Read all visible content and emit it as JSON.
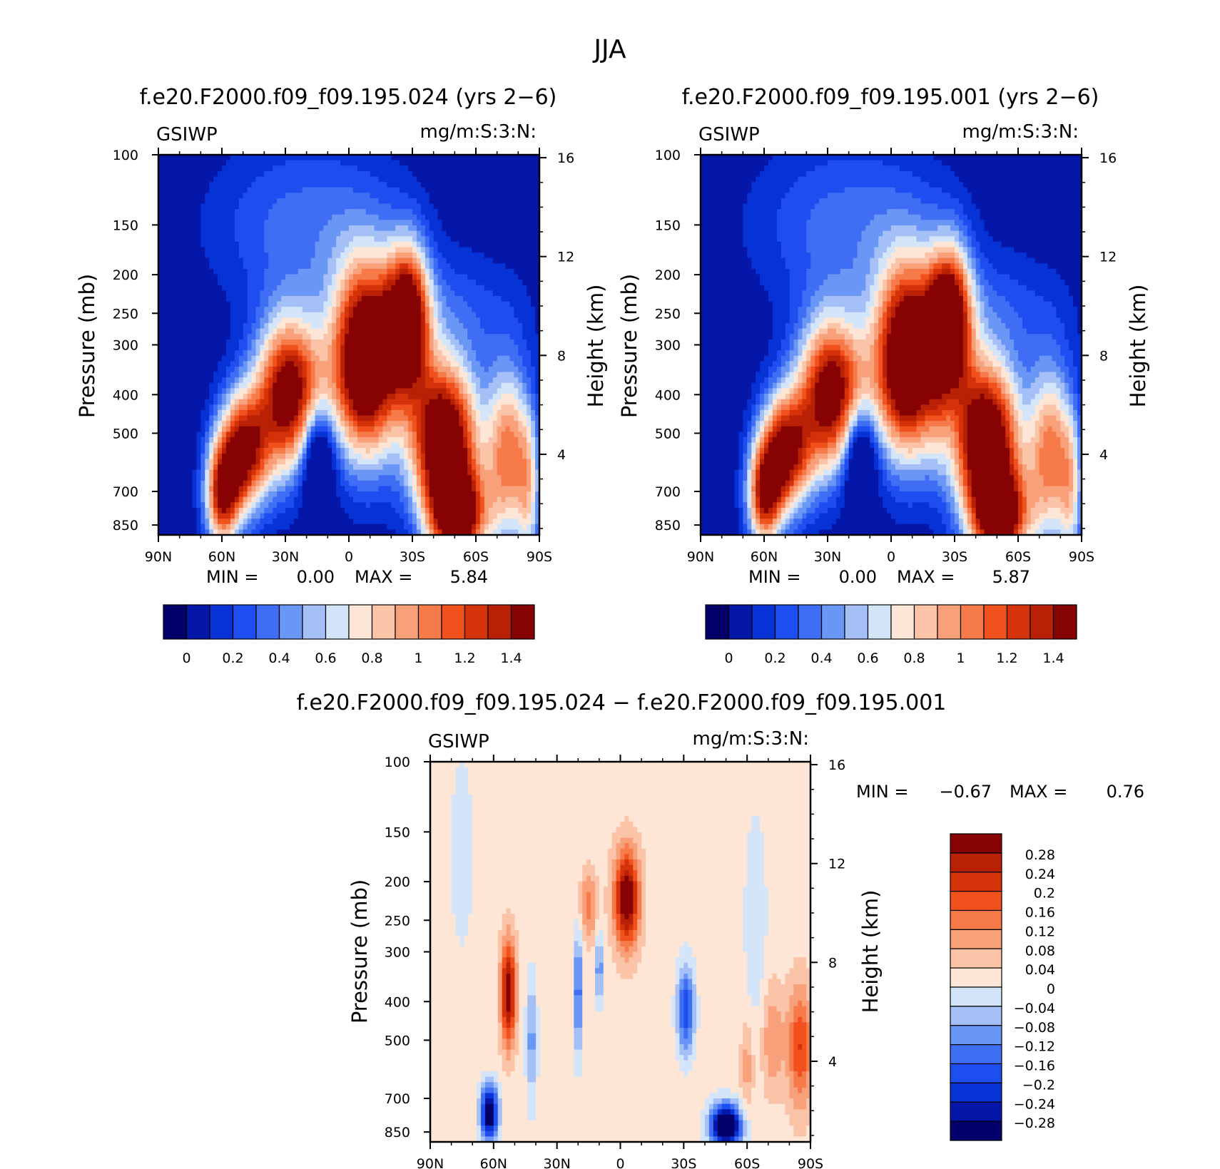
{
  "figure": {
    "title": "JJA",
    "panel_a_title": "f.e20.F2000.f09_f09.195.024 (yrs 2−6)",
    "panel_b_title": "f.e20.F2000.f09_f09.195.001 (yrs 2−6)",
    "panel_c_title": "f.e20.F2000.f09_f09.195.024 − f.e20.F2000.f09_f09.195.001",
    "variable": "GSIWP",
    "units": "mg/m:S:3:N:"
  },
  "chart_data": [
    {
      "type": "contour",
      "variable": "GSIWP",
      "units": "mg/m:S:3:N:",
      "title": "f.e20.F2000.f09_f09.195.024 (yrs 2−6)",
      "ylabel": "Pressure (mb)",
      "ylabel_right": "Height (km)",
      "x_ticks": [
        "90N",
        "60N",
        "30N",
        "0",
        "30S",
        "60S",
        "90S"
      ],
      "x_range": [
        90,
        -90
      ],
      "y_ticks": [
        100,
        150,
        200,
        250,
        300,
        400,
        500,
        700,
        850
      ],
      "y_range_mb": [
        100,
        900
      ],
      "y_scale": "log",
      "y_right_ticks": [
        16,
        12,
        8,
        4
      ],
      "min_label": "MIN =",
      "min_value": "0.00",
      "max_label": "MAX =",
      "max_value": "5.84",
      "colorbar_levels": [
        0,
        0.1,
        0.2,
        0.3,
        0.4,
        0.5,
        0.6,
        0.7,
        0.8,
        0.9,
        1,
        1.1,
        1.2,
        1.3,
        1.4
      ],
      "colorbar_labels": [
        "0",
        "0.2",
        "0.4",
        "0.6",
        "0.8",
        "1",
        "1.2",
        "1.4"
      ],
      "colorbar_orientation": "horizontal",
      "features": [
        {
          "lat": -14,
          "p": 340,
          "value": 1.5
        },
        {
          "lat": -46,
          "p": 560,
          "value": 1.5
        },
        {
          "lat": 45,
          "p": 230,
          "value": 0.1
        },
        {
          "lat": -45,
          "p": 110,
          "value": 0.0
        }
      ]
    },
    {
      "type": "contour",
      "variable": "GSIWP",
      "units": "mg/m:S:3:N:",
      "title": "f.e20.F2000.f09_f09.195.001 (yrs 2−6)",
      "ylabel": "Pressure (mb)",
      "ylabel_right": "Height (km)",
      "x_ticks": [
        "90N",
        "60N",
        "30N",
        "0",
        "30S",
        "60S",
        "90S"
      ],
      "x_range": [
        90,
        -90
      ],
      "y_ticks": [
        100,
        150,
        200,
        250,
        300,
        400,
        500,
        700,
        850
      ],
      "y_range_mb": [
        100,
        900
      ],
      "y_scale": "log",
      "y_right_ticks": [
        16,
        12,
        8,
        4
      ],
      "min_label": "MIN =",
      "min_value": "0.00",
      "max_label": "MAX =",
      "max_value": "5.87",
      "colorbar_levels": [
        0,
        0.1,
        0.2,
        0.3,
        0.4,
        0.5,
        0.6,
        0.7,
        0.8,
        0.9,
        1,
        1.1,
        1.2,
        1.3,
        1.4
      ],
      "colorbar_labels": [
        "0",
        "0.2",
        "0.4",
        "0.6",
        "0.8",
        "1",
        "1.2",
        "1.4"
      ],
      "colorbar_orientation": "horizontal",
      "features": [
        {
          "lat": -14,
          "p": 340,
          "value": 1.5
        },
        {
          "lat": -46,
          "p": 560,
          "value": 1.5
        },
        {
          "lat": 45,
          "p": 230,
          "value": 0.1
        },
        {
          "lat": -45,
          "p": 110,
          "value": 0.0
        }
      ]
    },
    {
      "type": "contour",
      "variable": "GSIWP",
      "units": "mg/m:S:3:N:",
      "title": "f.e20.F2000.f09_f09.195.024 − f.e20.F2000.f09_f09.195.001",
      "ylabel": "Pressure (mb)",
      "ylabel_right": "Height (km)",
      "x_ticks": [
        "90N",
        "60N",
        "30N",
        "0",
        "30S",
        "60S",
        "90S"
      ],
      "x_range": [
        90,
        -90
      ],
      "y_ticks": [
        100,
        150,
        200,
        250,
        300,
        400,
        500,
        700,
        850
      ],
      "y_range_mb": [
        100,
        900
      ],
      "y_scale": "log",
      "y_right_ticks": [
        16,
        12,
        8,
        4
      ],
      "min_label": "MIN =",
      "min_value": "−0.67",
      "max_label": "MAX =",
      "max_value": "0.76",
      "colorbar_levels": [
        -0.28,
        -0.24,
        -0.2,
        -0.16,
        -0.12,
        -0.08,
        -0.04,
        0,
        0.04,
        0.08,
        0.12,
        0.16,
        0.2,
        0.24,
        0.28
      ],
      "colorbar_labels": [
        "0.28",
        "0.24",
        "0.2",
        "0.16",
        "0.12",
        "0.08",
        "0.04",
        "0",
        "−0.04",
        "−0.08",
        "−0.12",
        "−0.16",
        "−0.2",
        "−0.24",
        "−0.28"
      ],
      "colorbar_orientation": "vertical",
      "features": [
        {
          "lat": -3,
          "p": 220,
          "value": 0.3
        },
        {
          "lat": 53,
          "p": 380,
          "value": 0.3
        },
        {
          "lat": 62,
          "p": 760,
          "value": -0.3
        },
        {
          "lat": -50,
          "p": 820,
          "value": -0.4
        },
        {
          "lat": 20,
          "p": 400,
          "value": -0.15
        },
        {
          "lat": -30,
          "p": 400,
          "value": -0.2
        },
        {
          "lat": -85,
          "p": 500,
          "value": 0.2
        },
        {
          "lat": -60,
          "p": 600,
          "value": 0.12
        }
      ]
    }
  ],
  "palette": {
    "seq15": [
      "#03006a",
      "#0517a8",
      "#0732d6",
      "#1f4ef0",
      "#3f6ef5",
      "#6a96f6",
      "#a4c0f7",
      "#d4e5f9",
      "#fde6d5",
      "#fbc4a8",
      "#f8a079",
      "#f67a4a",
      "#f0511d",
      "#d63209",
      "#b82106",
      "#870203"
    ]
  }
}
